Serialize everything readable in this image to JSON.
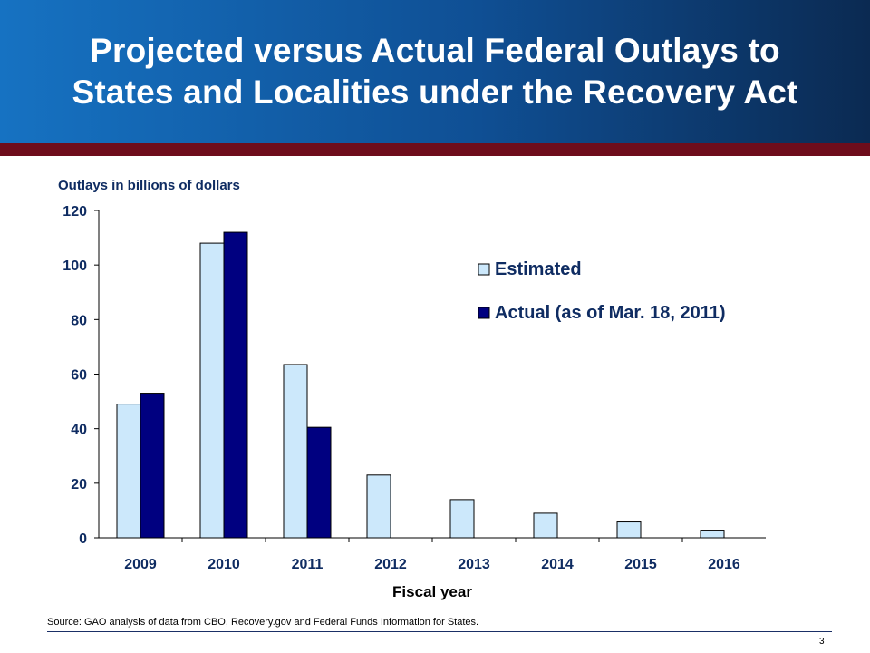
{
  "slide": {
    "title_line1": "Projected versus Actual Federal Outlays to",
    "title_line2": "States and Localities under the Recovery Act",
    "source": "Source: GAO analysis of data from CBO, Recovery.gov and Federal Funds Information for States.",
    "page_number": "3"
  },
  "colors": {
    "estimated": "#cce8fb",
    "actual": "#000080",
    "title_bg": "#0f4f94",
    "stripe": "#6e0d1c"
  },
  "chart_data": {
    "type": "bar",
    "ylabel": "Outlays in billions of dollars",
    "xlabel": "Fiscal year",
    "categories": [
      "2009",
      "2010",
      "2011",
      "2012",
      "2013",
      "2014",
      "2015",
      "2016"
    ],
    "ylim": [
      0,
      120
    ],
    "yticks": [
      0,
      20,
      40,
      60,
      80,
      100,
      120
    ],
    "series": [
      {
        "name": "Estimated",
        "color": "#cce8fb",
        "values": [
          49,
          108,
          63.5,
          23,
          14,
          9,
          5.8,
          2.8
        ]
      },
      {
        "name": "Actual (as of Mar. 18, 2011)",
        "color": "#000080",
        "values": [
          53,
          112,
          40.5,
          null,
          null,
          null,
          null,
          null
        ]
      }
    ],
    "grid": false,
    "legend_position": "top-right"
  }
}
